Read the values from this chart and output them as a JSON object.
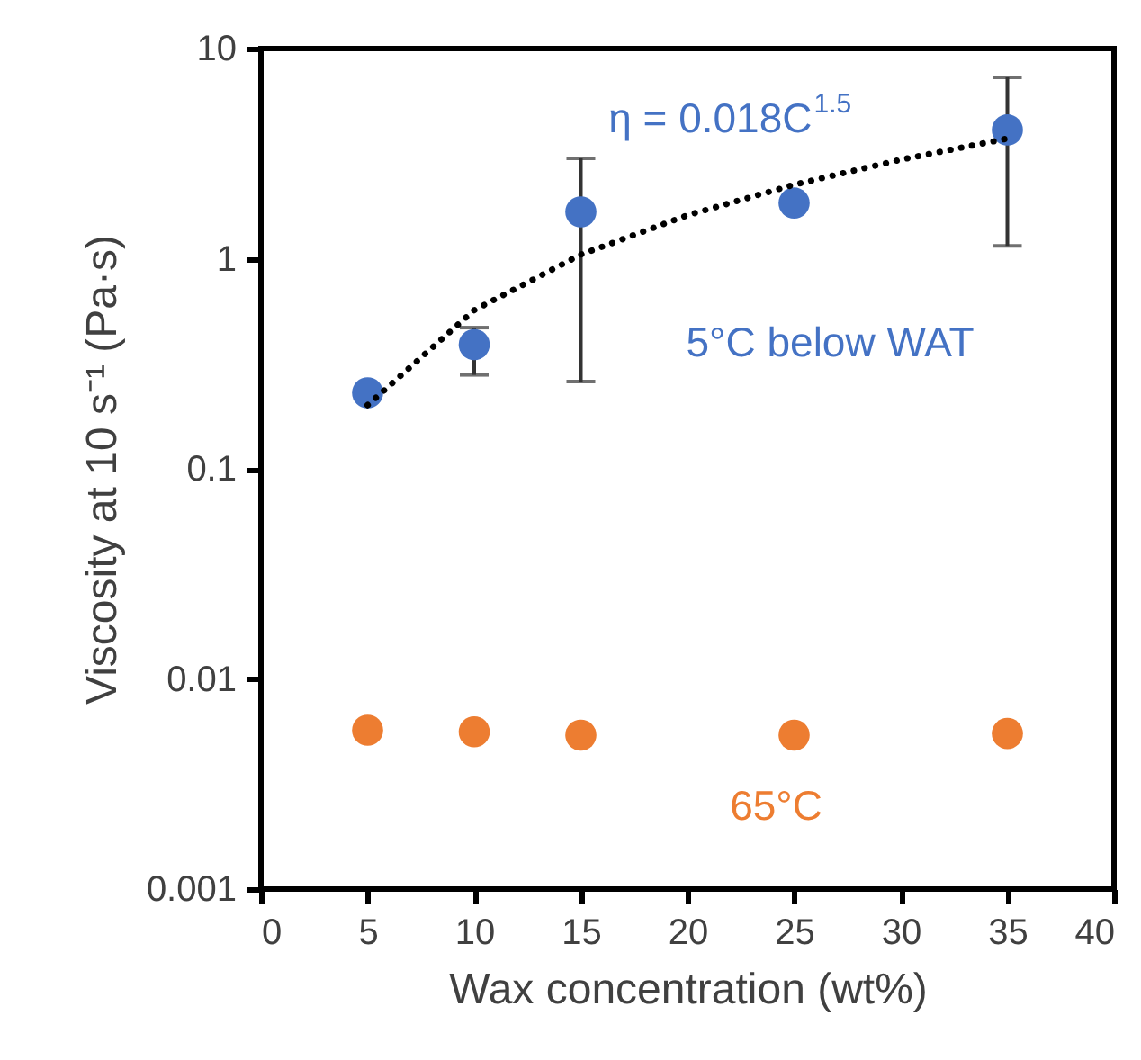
{
  "chart_data": {
    "type": "scatter",
    "xlabel": "Wax concentration (wt%)",
    "ylabel": "Viscosity at 10 s⁻¹ (Pa·s)",
    "x": [
      5,
      10,
      15,
      25,
      35
    ],
    "series": [
      {
        "name": "5°C below WAT",
        "color": "#4472c4",
        "values": [
          0.23,
          0.39,
          1.67,
          1.84,
          4.1
        ],
        "errors": [
          null,
          [
            0.28,
            0.47
          ],
          [
            0.26,
            3.0
          ],
          null,
          [
            1.15,
            7.3
          ]
        ]
      },
      {
        "name": "65°C",
        "color": "#ed7d31",
        "values": [
          0.0057,
          0.0056,
          0.0054,
          0.0054,
          0.0055
        ]
      },
      {
        "type": "line",
        "color": "#000000",
        "line_style": "dotted",
        "marker": "none",
        "x": [
          5,
          10,
          15,
          20,
          25,
          30,
          35
        ],
        "values": [
          0.201,
          0.569,
          1.046,
          1.61,
          2.25,
          2.96,
          3.73
        ]
      }
    ],
    "annotations": [
      "η = 0.018C$^{1.5}$"
    ],
    "xlim": [
      0,
      40
    ],
    "xticks": [
      0,
      5,
      10,
      15,
      20,
      25,
      30,
      35,
      40
    ],
    "ylim": [
      0.001,
      10
    ],
    "yticks": [
      0.001,
      0.01,
      0.1,
      1,
      10
    ],
    "log": "y",
    "grid": false,
    "marker": "circle"
  }
}
